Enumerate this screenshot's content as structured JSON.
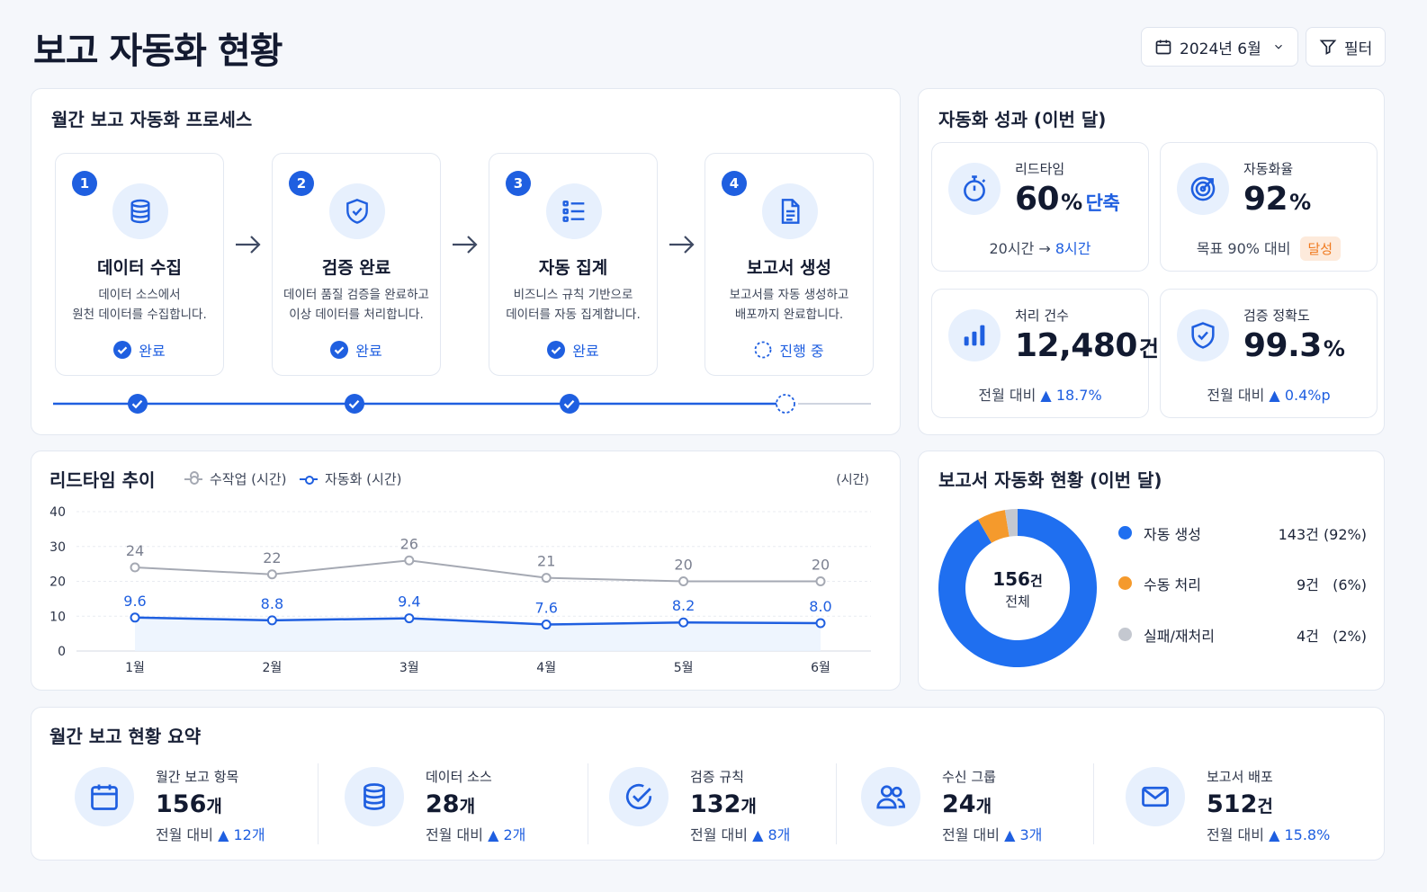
{
  "header": {
    "title": "보고 자동화 현황",
    "date_label": "2024년 6월",
    "filter_label": "필터"
  },
  "process": {
    "title": "월간 보고 자동화 프로세스",
    "steps": [
      {
        "num": "1",
        "icon": "database-icon",
        "title": "데이터 수집",
        "desc1": "데이터 소스에서",
        "desc2": "원천 데이터를 수집합니다.",
        "status": "완료",
        "done": true
      },
      {
        "num": "2",
        "icon": "shield-check-icon",
        "title": "검증 완료",
        "desc1": "데이터 품질 검증을 완료하고",
        "desc2": "이상 데이터를 처리합니다.",
        "status": "완료",
        "done": true
      },
      {
        "num": "3",
        "icon": "list-icon",
        "title": "자동 집계",
        "desc1": "비즈니스 규칙 기반으로",
        "desc2": "데이터를 자동 집계합니다.",
        "status": "완료",
        "done": true
      },
      {
        "num": "4",
        "icon": "document-icon",
        "title": "보고서 생성",
        "desc1": "보고서를 자동 생성하고",
        "desc2": "배포까지 완료합니다.",
        "status": "진행 중",
        "done": false
      }
    ]
  },
  "performance": {
    "title": "자동화 성과 (이번 달)",
    "kpis": [
      {
        "icon": "stopwatch-icon",
        "label": "리드타임",
        "value": "60",
        "unit": "%",
        "suffix": "단축",
        "foot_a": "20시간 → ",
        "foot_b": "8시간"
      },
      {
        "icon": "target-icon",
        "label": "자동화율",
        "value": "92",
        "unit": "%",
        "foot_a": "목표 90% 대비",
        "badge": "달성"
      },
      {
        "icon": "bar-chart-icon",
        "label": "처리 건수",
        "value": "12,480",
        "unit": "건",
        "foot_a": "전월 대비  ",
        "foot_b": "▲ 18.7%"
      },
      {
        "icon": "shield-check-icon",
        "label": "검증 정확도",
        "value": "99.3",
        "unit": "%",
        "foot_a": "전월 대비  ",
        "foot_b": "▲ 0.4%p"
      }
    ]
  },
  "leadtime": {
    "title": "리드타임 추이",
    "legend_manual": "수작업 (시간)",
    "legend_auto": "자동화 (시간)",
    "unit_label": "(시간)"
  },
  "chart_data": [
    {
      "type": "line",
      "title": "리드타임 추이",
      "categories": [
        "1월",
        "2월",
        "3월",
        "4월",
        "5월",
        "6월"
      ],
      "series": [
        {
          "name": "수작업 (시간)",
          "values": [
            24,
            22,
            26,
            21,
            20,
            20
          ],
          "color": "#a5a9b3"
        },
        {
          "name": "자동화 (시간)",
          "values": [
            9.6,
            8.8,
            9.4,
            7.6,
            8.2,
            8.0
          ],
          "color": "#1f5fe0"
        }
      ],
      "ylabel": "(시간)",
      "ylim": [
        0,
        40
      ],
      "yticks": [
        0,
        10,
        20,
        30,
        40
      ],
      "grid": true,
      "legend": "top-left"
    },
    {
      "type": "pie",
      "title": "보고서 자동화 현황 (이번 달)",
      "center_value": "156",
      "center_unit": "건",
      "center_label": "전체",
      "slices": [
        {
          "name": "자동 생성",
          "value": 143,
          "display": "143건 (92%)",
          "color": "#1f6ff0"
        },
        {
          "name": "수동 처리",
          "value": 9,
          "display": "9건   (6%)",
          "color": "#f59a2c"
        },
        {
          "name": "실패/재처리",
          "value": 4,
          "display": "4건   (2%)",
          "color": "#c4c8d0"
        }
      ]
    }
  ],
  "status_card": {
    "title": "보고서 자동화 현황 (이번 달)"
  },
  "summary": {
    "title": "월간 보고 현황 요약",
    "items": [
      {
        "icon": "calendar-icon",
        "label": "월간 보고 항목",
        "value": "156",
        "unit": "개",
        "foot_a": "전월 대비  ",
        "foot_b": "▲ 12개"
      },
      {
        "icon": "database-icon",
        "label": "데이터 소스",
        "value": "28",
        "unit": "개",
        "foot_a": "전월 대비  ",
        "foot_b": "▲ 2개"
      },
      {
        "icon": "check-circle-icon",
        "label": "검증 규칙",
        "value": "132",
        "unit": "개",
        "foot_a": "전월 대비  ",
        "foot_b": "▲ 8개"
      },
      {
        "icon": "users-icon",
        "label": "수신 그룹",
        "value": "24",
        "unit": "개",
        "foot_a": "전월 대비  ",
        "foot_b": "▲ 3개"
      },
      {
        "icon": "mail-icon",
        "label": "보고서 배포",
        "value": "512",
        "unit": "건",
        "foot_a": "전월 대비  ",
        "foot_b": "▲ 15.8%"
      }
    ]
  }
}
